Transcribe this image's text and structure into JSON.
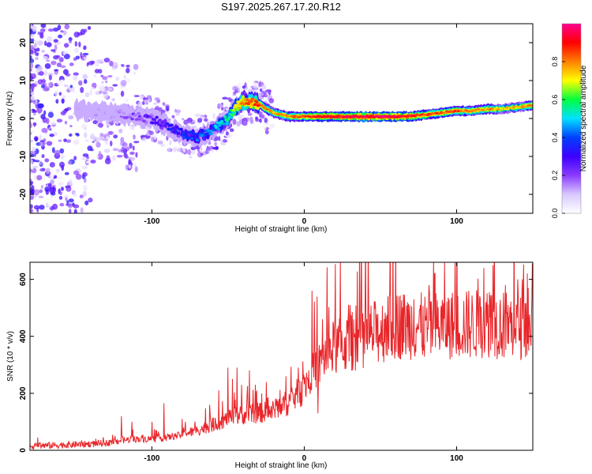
{
  "title": "S197.2025.267.17.20.R12",
  "colors": {
    "snr_line": "#e8262a",
    "colorscale": [
      "#ffffff",
      "#d9c8ff",
      "#8a3bff",
      "#3c00ff",
      "#0040ff",
      "#00e0ff",
      "#00ff40",
      "#ffff00",
      "#ff8000",
      "#ff0000",
      "#ff0090"
    ]
  },
  "chart_data": [
    {
      "type": "heatmap",
      "xlabel": "Height of straight line (km)",
      "ylabel": "Frequency (Hz)",
      "xlim": [
        -180,
        150
      ],
      "ylim": [
        -25,
        25
      ],
      "xticks": [
        -100,
        0,
        100
      ],
      "yticks": [
        -20,
        -10,
        0,
        10,
        20
      ],
      "colorbar": {
        "label": "Normalized spectral amplitude",
        "range": [
          0.0,
          1.0
        ],
        "ticks": [
          "0.0",
          "0.2",
          "0.4",
          "0.6",
          "0.8"
        ]
      },
      "ridge": {
        "x": [
          -180,
          -140,
          -120,
          -100,
          -90,
          -80,
          -70,
          -60,
          -50,
          -45,
          -40,
          -35,
          -30,
          -25,
          -20,
          -10,
          0,
          10,
          20,
          40,
          60,
          70,
          80,
          90,
          100,
          110,
          120,
          130,
          140,
          150
        ],
        "y": [
          3,
          2,
          1,
          0,
          -2,
          -4,
          -5,
          -3,
          0,
          3,
          4.5,
          4.5,
          4,
          2.5,
          1.5,
          0.5,
          0.5,
          0.5,
          0.5,
          0.5,
          0.5,
          0.6,
          1,
          1.5,
          2,
          2,
          2.5,
          2.5,
          3,
          3.5
        ],
        "amplitude": [
          0.05,
          0.08,
          0.15,
          0.25,
          0.3,
          0.35,
          0.4,
          0.45,
          0.55,
          0.7,
          0.8,
          0.85,
          0.85,
          0.8,
          0.75,
          0.8,
          0.85,
          0.9,
          0.9,
          0.95,
          0.95,
          0.9,
          0.85,
          0.85,
          0.85,
          0.8,
          0.8,
          0.75,
          0.75,
          0.8
        ]
      }
    },
    {
      "type": "line",
      "xlabel": "Height of straight line (km)",
      "ylabel": "SNR (10 * v/v)",
      "xlim": [
        -180,
        150
      ],
      "ylim": [
        0,
        660
      ],
      "xticks": [
        -100,
        0,
        100
      ],
      "yticks": [
        0,
        200,
        400,
        600
      ],
      "trend": {
        "x": [
          -180,
          -150,
          -130,
          -120,
          -110,
          -100,
          -90,
          -80,
          -70,
          -60,
          -50,
          -40,
          -30,
          -20,
          -10,
          0,
          5,
          10,
          15,
          20,
          30,
          40,
          50,
          60,
          70,
          80,
          90,
          100,
          110,
          120,
          130,
          140,
          150
        ],
        "y": [
          15,
          20,
          25,
          35,
          40,
          40,
          45,
          55,
          70,
          90,
          110,
          125,
          130,
          140,
          170,
          220,
          290,
          300,
          340,
          360,
          380,
          400,
          420,
          440,
          440,
          430,
          440,
          440,
          440,
          450,
          440,
          440,
          440
        ]
      },
      "spikes": {
        "x": [
          -175,
          -120,
          -113,
          -100,
          -92,
          -80,
          -78,
          -70,
          -62,
          -56,
          -50,
          -47,
          -44,
          -41,
          -36,
          -32,
          -28,
          -25,
          -18,
          -12,
          -8,
          -4,
          5,
          9,
          12,
          20,
          30,
          40,
          55,
          62,
          72,
          82,
          92,
          108,
          118,
          124,
          132,
          140,
          143,
          147
        ],
        "y": [
          45,
          120,
          100,
          100,
          165,
          110,
          100,
          75,
          160,
          210,
          290,
          250,
          290,
          230,
          280,
          230,
          200,
          240,
          180,
          260,
          220,
          290,
          560,
          130,
          460,
          460,
          510,
          510,
          540,
          540,
          530,
          580,
          660,
          560,
          640,
          650,
          580,
          600,
          600,
          570
        ]
      }
    }
  ]
}
